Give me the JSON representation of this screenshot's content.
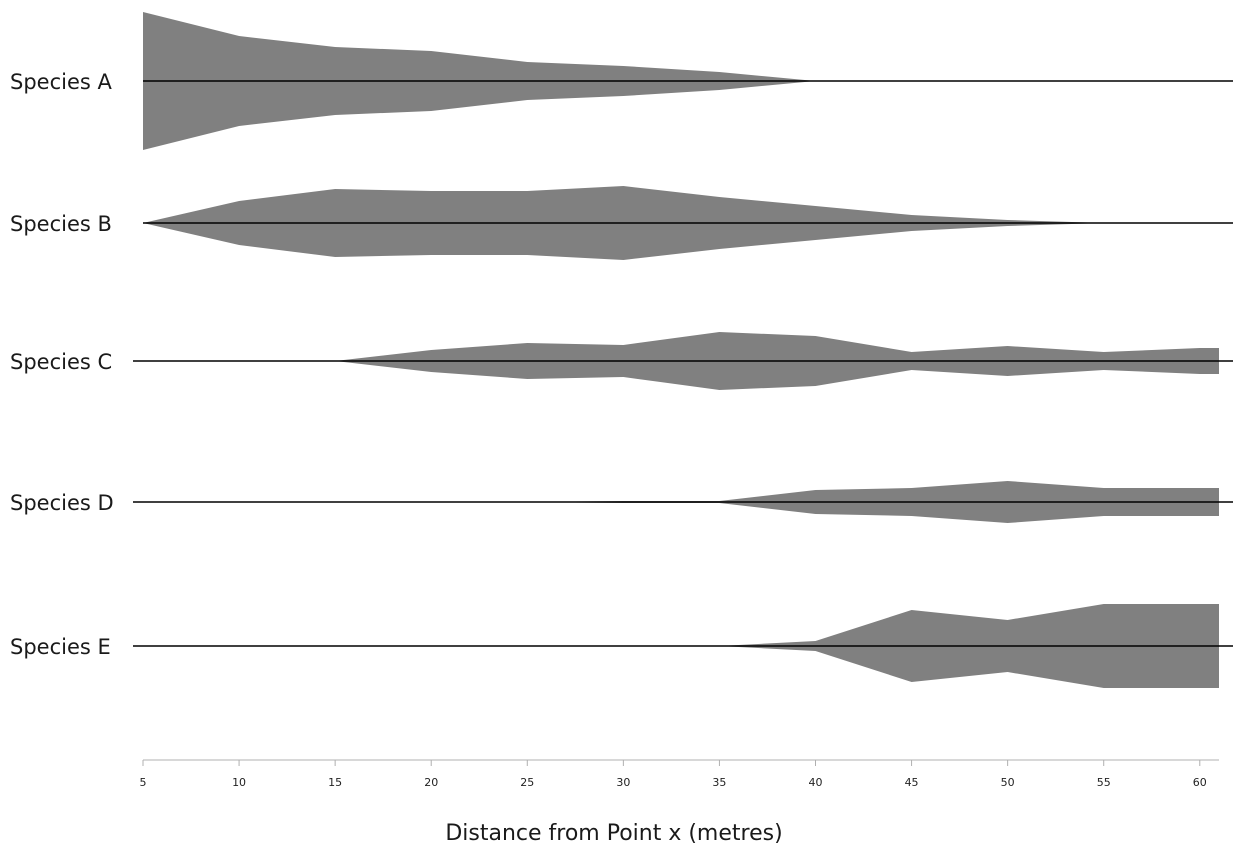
{
  "chart_data": {
    "type": "area",
    "title": "",
    "xlabel": "Distance from Point x (metres)",
    "ylabel": "",
    "x": [
      5,
      10,
      15,
      20,
      25,
      30,
      35,
      40,
      45,
      50,
      55,
      60
    ],
    "xlim": [
      5,
      61
    ],
    "grid": false,
    "legend": "none",
    "fill_color": "#808080",
    "line_color": "#000000",
    "series": [
      {
        "name": "Species A",
        "values": [
          69,
          45,
          34,
          30,
          19,
          15,
          9,
          0,
          0,
          0,
          0,
          0
        ]
      },
      {
        "name": "Species B",
        "values": [
          0,
          22,
          34,
          32,
          32,
          37,
          26,
          17,
          8,
          3,
          0,
          0
        ]
      },
      {
        "name": "Species C",
        "values": [
          0,
          0,
          0,
          11,
          18,
          16,
          29,
          25,
          9,
          15,
          9,
          13
        ]
      },
      {
        "name": "Species D",
        "values": [
          0,
          0,
          0,
          0,
          0,
          1,
          1,
          12,
          14,
          21,
          14,
          14
        ]
      },
      {
        "name": "Species E",
        "values": [
          0,
          0,
          0,
          0,
          0,
          0,
          0,
          5,
          36,
          26,
          42,
          42
        ]
      }
    ]
  }
}
